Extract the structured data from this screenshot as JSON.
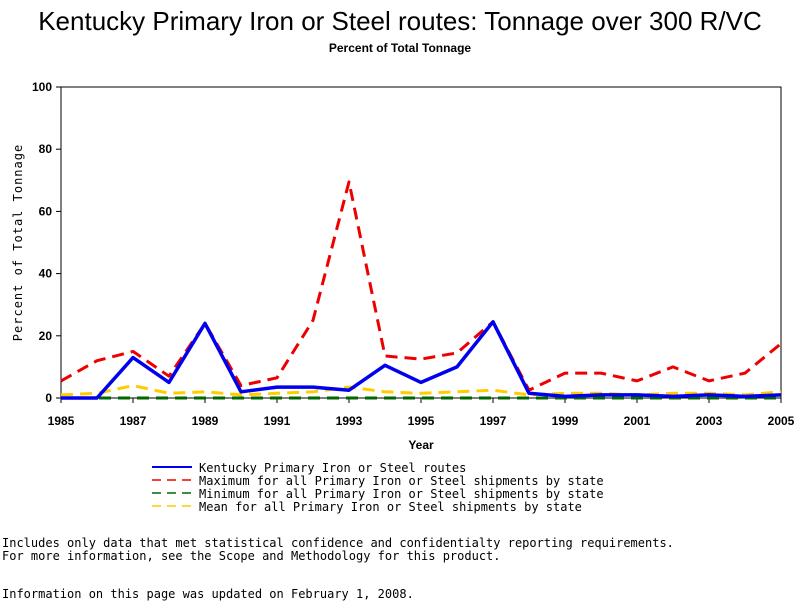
{
  "page": {
    "title": "Kentucky Primary Iron or Steel routes: Tonnage over 300 R/VC",
    "subtitle": "Percent of Total Tonnage",
    "notes": [
      "Includes only data that met statistical confidence and confidentialty reporting requirements.",
      "For more information, see the Scope and Methodology for this product.",
      "Information on this page was updated on February 1, 2008."
    ]
  },
  "chart_data": {
    "type": "line",
    "title": "Kentucky Primary Iron or Steel routes: Tonnage over 300 R/VC",
    "subtitle": "Percent of Total Tonnage",
    "xlabel": "Year",
    "ylabel": "Percent of Total Tonnage",
    "xlim": [
      1985,
      2005
    ],
    "ylim": [
      0,
      100
    ],
    "xticks": [
      1985,
      1987,
      1989,
      1991,
      1993,
      1995,
      1997,
      1999,
      2001,
      2003,
      2005
    ],
    "yticks": [
      0,
      20,
      40,
      60,
      80,
      100
    ],
    "x": [
      1985,
      1986,
      1987,
      1988,
      1989,
      1990,
      1991,
      1992,
      1993,
      1994,
      1995,
      1996,
      1997,
      1998,
      1999,
      2000,
      2001,
      2002,
      2003,
      2004,
      2005
    ],
    "series": [
      {
        "name": "Kentucky Primary Iron or Steel routes",
        "color": "#0000ee",
        "style": "solid",
        "values": [
          0,
          0,
          13,
          5,
          24,
          2,
          3.5,
          3.5,
          2.5,
          10.5,
          5,
          10,
          24.5,
          1.5,
          0.5,
          1,
          1,
          0.5,
          1,
          0.5,
          1
        ]
      },
      {
        "name": "Maximum for all Primary Iron or Steel shipments by state",
        "color": "#ee0000",
        "style": "dashed",
        "values": [
          5.5,
          12,
          15,
          7,
          24,
          4,
          6.5,
          25,
          69.5,
          13.5,
          12.5,
          14.5,
          24.5,
          2.5,
          8,
          8,
          5.5,
          10,
          5.5,
          8,
          17.5
        ]
      },
      {
        "name": "Minimum for all Primary Iron or Steel shipments by state",
        "color": "#006600",
        "style": "dashed",
        "values": [
          0,
          0,
          0,
          0,
          0,
          0,
          0,
          0,
          0,
          0,
          0,
          0,
          0,
          0,
          0,
          0,
          0,
          0,
          0,
          0,
          0
        ]
      },
      {
        "name": "Mean for all Primary Iron or Steel shipments by state",
        "color": "#ffcc00",
        "style": "dashed",
        "values": [
          1,
          1.5,
          4,
          1.5,
          2,
          1,
          1.5,
          2,
          3.5,
          2,
          1.5,
          2,
          2.5,
          1,
          1.5,
          1.5,
          1,
          1.5,
          1.5,
          1,
          2
        ]
      }
    ],
    "grid": false,
    "legend_position": "bottom"
  }
}
